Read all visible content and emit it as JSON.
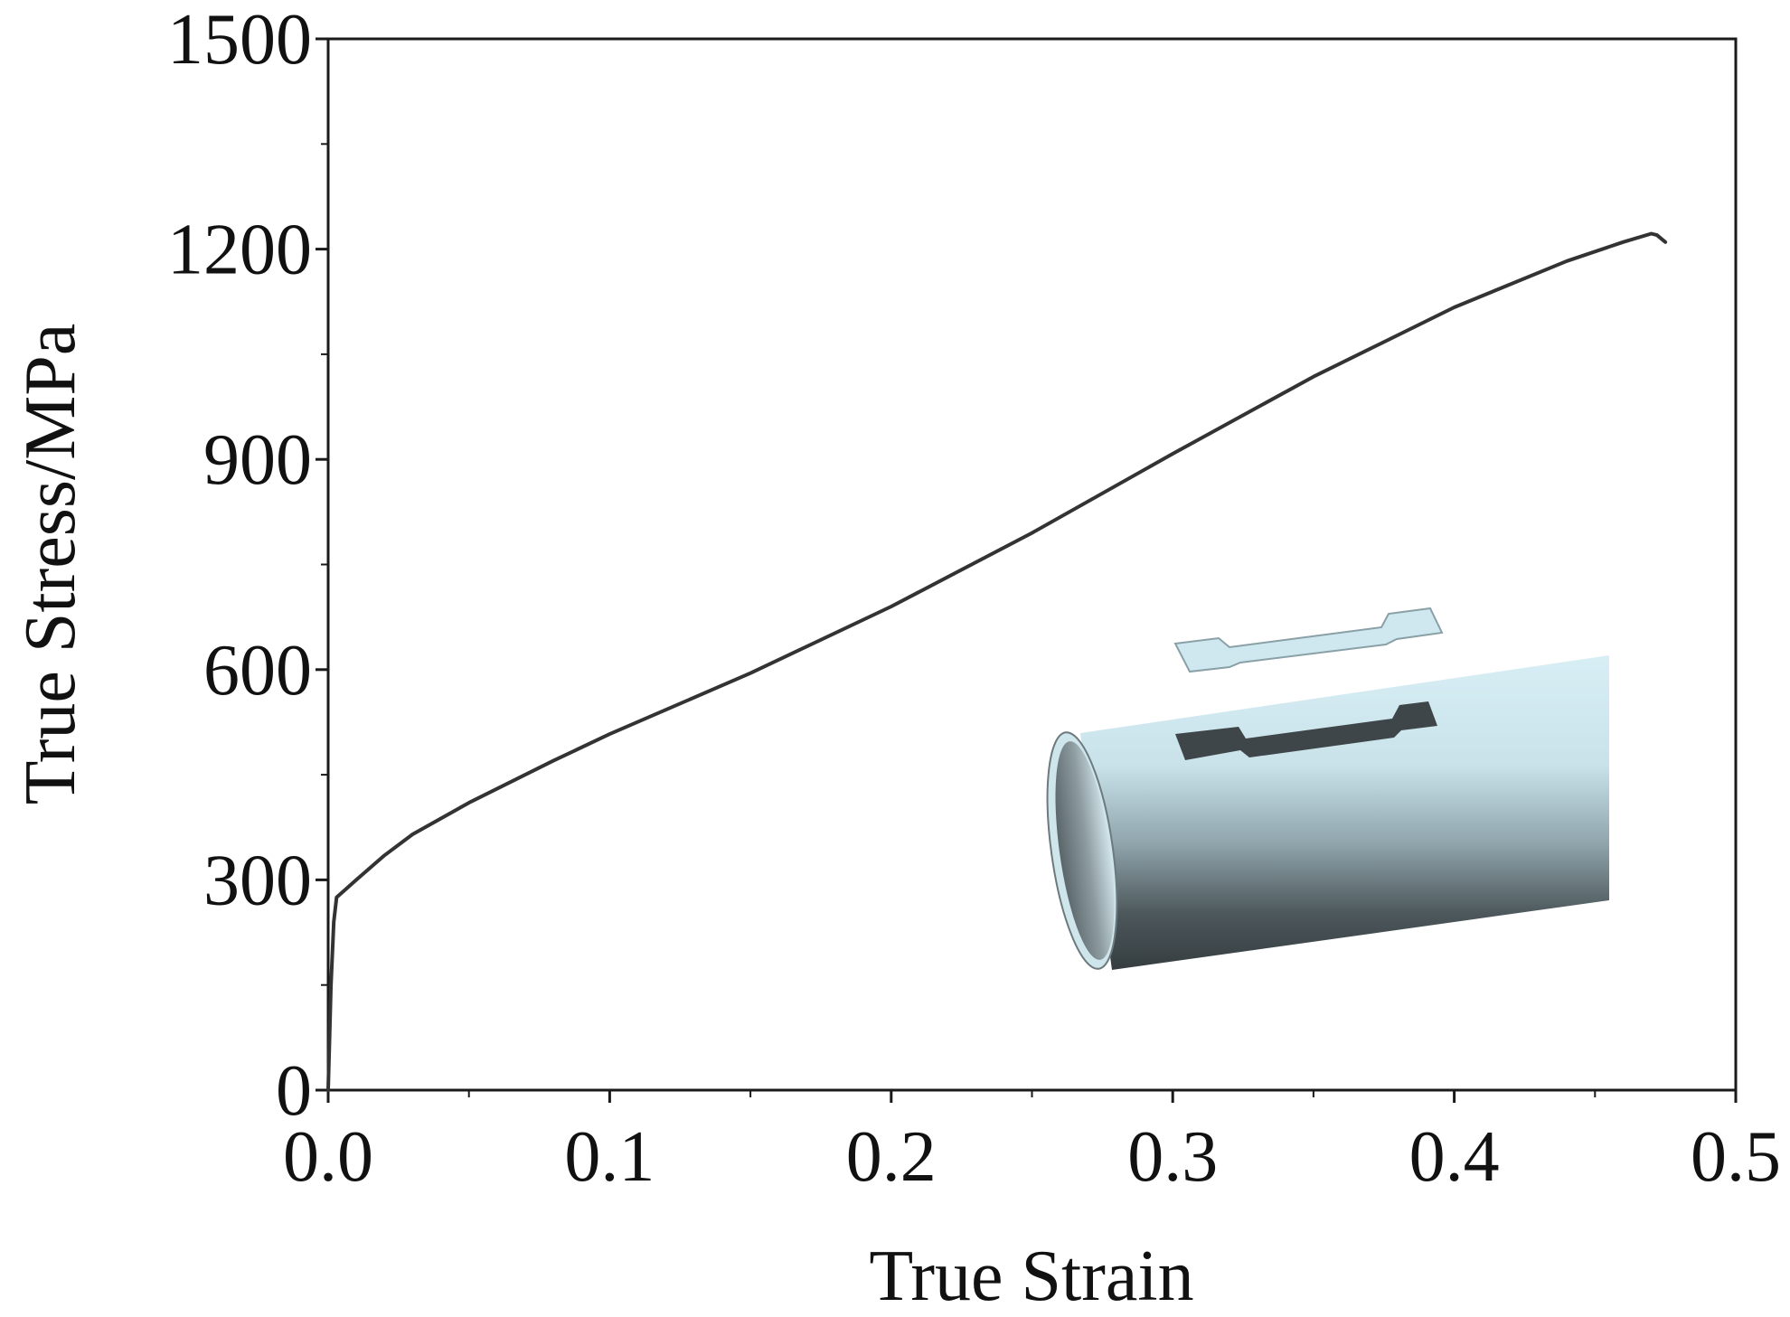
{
  "chart_data": {
    "type": "line",
    "title": "",
    "xlabel": "True Strain",
    "ylabel": "True Stress/MPa",
    "xlim": [
      0.0,
      0.5
    ],
    "ylim": [
      0,
      1500
    ],
    "x_ticks": [
      "0.0",
      "0.1",
      "0.2",
      "0.3",
      "0.4",
      "0.5"
    ],
    "y_ticks": [
      "0",
      "300",
      "600",
      "900",
      "1200",
      "1500"
    ],
    "grid": false,
    "legend": "none",
    "series": [
      {
        "color": "#333333",
        "x": [
          0.0,
          0.001,
          0.002,
          0.003,
          0.01,
          0.02,
          0.03,
          0.05,
          0.08,
          0.1,
          0.15,
          0.2,
          0.25,
          0.3,
          0.35,
          0.4,
          0.44,
          0.46,
          0.47,
          0.472,
          0.475
        ],
        "y": [
          0,
          150,
          240,
          275,
          300,
          335,
          365,
          410,
          470,
          508,
          595,
          690,
          795,
          908,
          1018,
          1117,
          1183,
          1210,
          1222,
          1220,
          1210
        ]
      }
    ],
    "inset": {
      "description_icon": "tube-with-dogbone-specimen-icon",
      "colors": {
        "tube_light": "#d4ecf3",
        "tube_dark": "#3a4448",
        "specimen_cutout": "#3f4649",
        "specimen": "#cfe8ef"
      }
    }
  }
}
